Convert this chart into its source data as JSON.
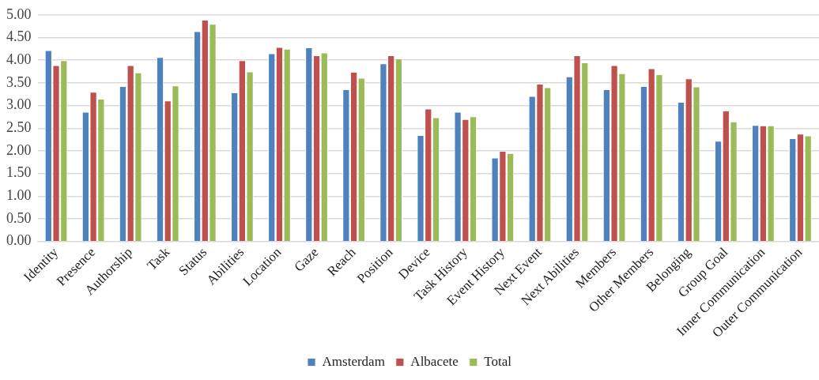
{
  "chart_data": {
    "type": "bar",
    "categories": [
      "Identity",
      "Presence",
      "Authorship",
      "Task",
      "Status",
      "Abilities",
      "Location",
      "Gaze",
      "Reach",
      "Position",
      "Device",
      "Task History",
      "Event History",
      "Next Event",
      "Next Abilities",
      "Members",
      "Other Members",
      "Belonging",
      "Group Goal",
      "Inner Communication",
      "Outer Communication"
    ],
    "series": [
      {
        "name": "Amsterdam",
        "color": "#4f81bd",
        "values": [
          4.22,
          2.86,
          3.43,
          4.07,
          4.64,
          3.29,
          4.15,
          4.28,
          3.36,
          3.93,
          2.35,
          2.86,
          1.85,
          3.21,
          3.64,
          3.36,
          3.43,
          3.08,
          2.22,
          2.57,
          2.28
        ]
      },
      {
        "name": "Albacete",
        "color": "#c0504d",
        "values": [
          3.89,
          3.3,
          3.89,
          3.11,
          4.89,
          4.0,
          4.29,
          4.11,
          3.74,
          4.11,
          2.93,
          2.7,
          2.0,
          3.48,
          4.11,
          3.89,
          3.82,
          3.6,
          2.89,
          2.56,
          2.38
        ]
      },
      {
        "name": "Total",
        "color": "#9bbb59",
        "values": [
          4.0,
          3.15,
          3.73,
          3.44,
          4.8,
          3.75,
          4.25,
          4.17,
          3.61,
          4.04,
          2.74,
          2.76,
          1.95,
          3.4,
          3.95,
          3.71,
          3.69,
          3.42,
          2.65,
          2.56,
          2.34
        ]
      }
    ],
    "ylim": [
      0,
      5
    ],
    "yticks": [
      {
        "value": 0,
        "label": "0.00"
      },
      {
        "value": 0.5,
        "label": "0.50"
      },
      {
        "value": 1,
        "label": "1.00"
      },
      {
        "value": 1.5,
        "label": "1.50"
      },
      {
        "value": 2,
        "label": "2.00"
      },
      {
        "value": 2.5,
        "label": "2.50"
      },
      {
        "value": 3,
        "label": "3.00"
      },
      {
        "value": 3.5,
        "label": "3.50"
      },
      {
        "value": 4,
        "label": "4.00"
      },
      {
        "value": 4.5,
        "label": "4.50"
      },
      {
        "value": 5,
        "label": "5.00"
      }
    ],
    "grid": "y",
    "legend": "bottom"
  }
}
